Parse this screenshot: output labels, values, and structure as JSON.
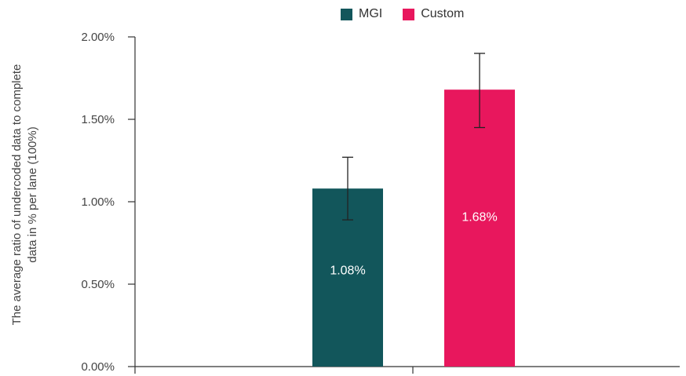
{
  "chart_data": {
    "type": "bar",
    "categories": [
      ""
    ],
    "series": [
      {
        "name": "MGI",
        "values": [
          1.08
        ],
        "error_low": [
          0.89
        ],
        "error_high": [
          1.27
        ],
        "color": "#12565b"
      },
      {
        "name": "Custom",
        "values": [
          1.68
        ],
        "error_low": [
          1.45
        ],
        "error_high": [
          1.9
        ],
        "color": "#e8175d"
      }
    ],
    "data_labels": [
      "1.08%",
      "1.68%"
    ],
    "ylabel_lines": [
      "The average ratio of undercoded data to complete",
      "data in % per lane (100%)"
    ],
    "xlabel": "",
    "ylim": [
      0,
      2
    ],
    "yticks": [
      0,
      0.5,
      1.0,
      1.5,
      2.0
    ],
    "ytick_labels": [
      "0.00%",
      "0.50%",
      "1.00%",
      "1.50%",
      "2.00%"
    ],
    "grid": false,
    "legend_position": "top"
  }
}
